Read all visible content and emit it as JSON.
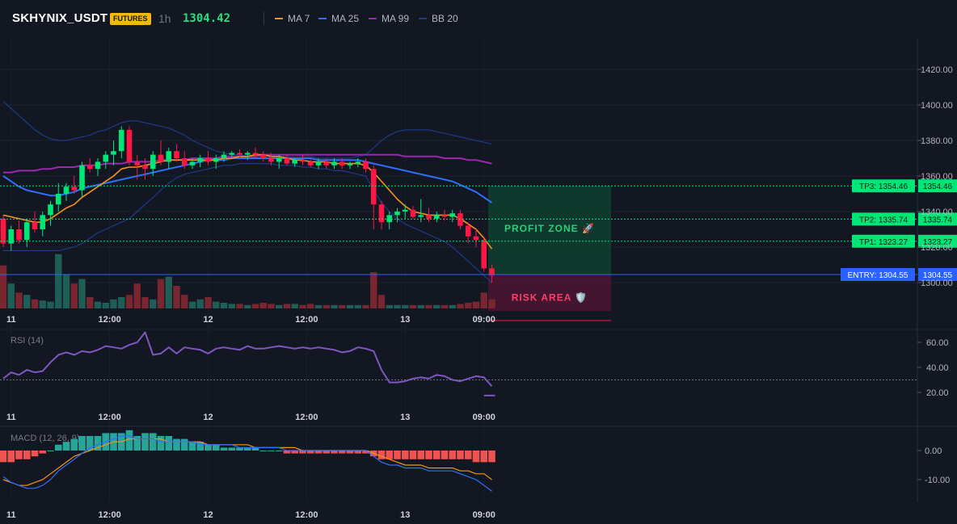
{
  "header": {
    "symbol": "SKHYNIX_USDT",
    "badge": "FUTURES",
    "timeframe": "1h",
    "last_price": "1304.42",
    "legend": [
      {
        "name": "MA 7",
        "color": "#f7931a",
        "icon": "line-swatch-icon"
      },
      {
        "name": "MA 25",
        "color": "#2f6fff",
        "icon": "line-swatch-icon"
      },
      {
        "name": "MA 99",
        "color": "#9c27b0",
        "icon": "line-swatch-icon"
      },
      {
        "name": "BB 20",
        "color": "#1e3a8a",
        "icon": "line-swatch-icon"
      }
    ]
  },
  "chart_data": [
    {
      "type": "candlestick",
      "title": "SKHYNIX_USDT",
      "ylim": [
        1292,
        1428
      ],
      "y_ticks": [
        "1420.00",
        "1400.00",
        "1380.00",
        "1360.00",
        "1340.00",
        "1320.00",
        "1300.00"
      ],
      "x_ticks": [
        "11",
        "12:00",
        "12",
        "12:00",
        "13",
        "09:00"
      ],
      "candles": [
        [
          1336,
          1338,
          1320,
          1322
        ],
        [
          1322,
          1332,
          1318,
          1330
        ],
        [
          1330,
          1335,
          1322,
          1324
        ],
        [
          1324,
          1336,
          1320,
          1334
        ],
        [
          1334,
          1340,
          1328,
          1330
        ],
        [
          1330,
          1340,
          1326,
          1338
        ],
        [
          1338,
          1346,
          1332,
          1344
        ],
        [
          1344,
          1356,
          1340,
          1350
        ],
        [
          1350,
          1356,
          1346,
          1354
        ],
        [
          1354,
          1360,
          1350,
          1352
        ],
        [
          1352,
          1368,
          1348,
          1366
        ],
        [
          1366,
          1370,
          1362,
          1364
        ],
        [
          1364,
          1370,
          1360,
          1368
        ],
        [
          1368,
          1374,
          1364,
          1372
        ],
        [
          1372,
          1380,
          1366,
          1374
        ],
        [
          1374,
          1388,
          1370,
          1386
        ],
        [
          1386,
          1388,
          1366,
          1368
        ],
        [
          1368,
          1372,
          1358,
          1366
        ],
        [
          1366,
          1370,
          1358,
          1364
        ],
        [
          1364,
          1374,
          1360,
          1372
        ],
        [
          1372,
          1380,
          1366,
          1368
        ],
        [
          1368,
          1376,
          1364,
          1374
        ],
        [
          1374,
          1378,
          1368,
          1370
        ],
        [
          1370,
          1374,
          1364,
          1366
        ],
        [
          1366,
          1370,
          1364,
          1368
        ],
        [
          1368,
          1372,
          1365,
          1370
        ],
        [
          1370,
          1374,
          1366,
          1368
        ],
        [
          1368,
          1372,
          1364,
          1370
        ],
        [
          1370,
          1374,
          1368,
          1372
        ],
        [
          1372,
          1374,
          1370,
          1373
        ],
        [
          1373,
          1375,
          1370,
          1372
        ],
        [
          1372,
          1374,
          1369,
          1373
        ],
        [
          1373,
          1376,
          1370,
          1372
        ],
        [
          1372,
          1374,
          1368,
          1370
        ],
        [
          1370,
          1373,
          1366,
          1368
        ],
        [
          1368,
          1372,
          1364,
          1370
        ],
        [
          1370,
          1372,
          1366,
          1367
        ],
        [
          1367,
          1370,
          1365,
          1369
        ],
        [
          1369,
          1372,
          1366,
          1368
        ],
        [
          1368,
          1370,
          1365,
          1366
        ],
        [
          1366,
          1370,
          1364,
          1368
        ],
        [
          1368,
          1370,
          1364,
          1366
        ],
        [
          1366,
          1370,
          1364,
          1368
        ],
        [
          1368,
          1370,
          1364,
          1366
        ],
        [
          1366,
          1368,
          1364,
          1367
        ],
        [
          1367,
          1370,
          1365,
          1368
        ],
        [
          1368,
          1370,
          1362,
          1364
        ],
        [
          1364,
          1366,
          1330,
          1344
        ],
        [
          1344,
          1346,
          1330,
          1334
        ],
        [
          1334,
          1340,
          1330,
          1338
        ],
        [
          1338,
          1342,
          1334,
          1340
        ],
        [
          1340,
          1344,
          1336,
          1341
        ],
        [
          1341,
          1343,
          1336,
          1337
        ],
        [
          1337,
          1347,
          1334,
          1338
        ],
        [
          1338,
          1342,
          1334,
          1336
        ],
        [
          1336,
          1340,
          1334,
          1338
        ],
        [
          1338,
          1341,
          1335,
          1337
        ],
        [
          1337,
          1341,
          1334,
          1339
        ],
        [
          1339,
          1341,
          1330,
          1332
        ],
        [
          1332,
          1334,
          1322,
          1326
        ],
        [
          1326,
          1330,
          1320,
          1324
        ],
        [
          1324,
          1326,
          1306,
          1308
        ],
        [
          1308,
          1310,
          1300,
          1304
        ]
      ],
      "ma7": [
        1338,
        1337,
        1336,
        1335,
        1334,
        1334,
        1336,
        1339,
        1342,
        1344,
        1348,
        1351,
        1354,
        1357,
        1360,
        1364,
        1365,
        1365,
        1366,
        1367,
        1368,
        1369,
        1369,
        1369,
        1369,
        1369,
        1369,
        1369,
        1370,
        1370,
        1371,
        1371,
        1372,
        1372,
        1371,
        1371,
        1370,
        1369,
        1369,
        1368,
        1368,
        1368,
        1367,
        1367,
        1367,
        1367,
        1366,
        1362,
        1357,
        1352,
        1347,
        1343,
        1340,
        1339,
        1338,
        1338,
        1338,
        1338,
        1336,
        1333,
        1330,
        1325,
        1319
      ],
      "ma25": [
        1360,
        1357,
        1354,
        1352,
        1351,
        1350,
        1349,
        1349,
        1350,
        1351,
        1353,
        1354,
        1355,
        1356,
        1357,
        1358,
        1359,
        1360,
        1361,
        1362,
        1363,
        1364,
        1365,
        1366,
        1367,
        1368,
        1369,
        1369,
        1369,
        1370,
        1370,
        1370,
        1370,
        1370,
        1370,
        1370,
        1370,
        1370,
        1370,
        1370,
        1369,
        1369,
        1369,
        1369,
        1369,
        1369,
        1368,
        1367,
        1366,
        1365,
        1364,
        1363,
        1362,
        1361,
        1360,
        1359,
        1358,
        1357,
        1355,
        1353,
        1351,
        1348,
        1345
      ],
      "ma99": [
        1362,
        1362,
        1363,
        1363,
        1363,
        1364,
        1364,
        1365,
        1365,
        1365,
        1366,
        1366,
        1366,
        1367,
        1367,
        1367,
        1368,
        1368,
        1368,
        1368,
        1369,
        1369,
        1369,
        1369,
        1370,
        1370,
        1370,
        1370,
        1371,
        1371,
        1371,
        1371,
        1371,
        1372,
        1372,
        1372,
        1372,
        1372,
        1372,
        1372,
        1372,
        1372,
        1372,
        1372,
        1372,
        1372,
        1372,
        1372,
        1372,
        1372,
        1372,
        1371,
        1371,
        1371,
        1371,
        1371,
        1370,
        1370,
        1370,
        1369,
        1369,
        1368,
        1367
      ],
      "bb_upper": [
        1402,
        1398,
        1394,
        1390,
        1386,
        1383,
        1381,
        1380,
        1380,
        1381,
        1382,
        1383,
        1385,
        1386,
        1388,
        1390,
        1391,
        1391,
        1390,
        1389,
        1388,
        1387,
        1385,
        1383,
        1380,
        1378,
        1376,
        1374,
        1373,
        1372,
        1372,
        1371,
        1371,
        1371,
        1371,
        1371,
        1371,
        1371,
        1371,
        1371,
        1370,
        1370,
        1370,
        1370,
        1370,
        1371,
        1372,
        1376,
        1380,
        1383,
        1385,
        1386,
        1386,
        1386,
        1386,
        1385,
        1384,
        1383,
        1382,
        1381,
        1380,
        1379,
        1378
      ],
      "bb_lower": [
        1318,
        1318,
        1318,
        1318,
        1318,
        1318,
        1318,
        1318,
        1319,
        1320,
        1322,
        1325,
        1328,
        1330,
        1332,
        1334,
        1336,
        1340,
        1344,
        1348,
        1352,
        1356,
        1359,
        1361,
        1362,
        1363,
        1364,
        1365,
        1366,
        1366,
        1367,
        1367,
        1367,
        1367,
        1367,
        1366,
        1366,
        1366,
        1365,
        1365,
        1364,
        1364,
        1363,
        1363,
        1362,
        1361,
        1360,
        1352,
        1345,
        1340,
        1336,
        1333,
        1331,
        1329,
        1327,
        1325,
        1323,
        1320,
        1316,
        1312,
        1308,
        1304,
        1300
      ]
    },
    {
      "type": "bar",
      "title": "Volume",
      "values": [
        38,
        22,
        14,
        12,
        8,
        7,
        6,
        48,
        30,
        22,
        26,
        10,
        6,
        5,
        8,
        10,
        12,
        22,
        10,
        8,
        26,
        28,
        20,
        12,
        6,
        8,
        10,
        6,
        5,
        4,
        4,
        3,
        4,
        5,
        4,
        3,
        4,
        4,
        3,
        4,
        3,
        3,
        3,
        3,
        3,
        3,
        3,
        32,
        12,
        3,
        3,
        3,
        3,
        3,
        3,
        3,
        3,
        3,
        4,
        5,
        6,
        14,
        8
      ]
    },
    {
      "type": "line",
      "title": "RSI (14)",
      "ylim": [
        10,
        70
      ],
      "y_ticks": [
        "60.00",
        "40.00",
        "20.00"
      ],
      "values": [
        31,
        36,
        34,
        38,
        36,
        37,
        44,
        50,
        52,
        50,
        53,
        52,
        54,
        57,
        56,
        55,
        58,
        60,
        68,
        50,
        51,
        56,
        51,
        56,
        55,
        54,
        51,
        55,
        56,
        55,
        54,
        57,
        55,
        55,
        56,
        57,
        56,
        55,
        56,
        55,
        56,
        55,
        54,
        52,
        53,
        56,
        55,
        53,
        38,
        28,
        28,
        29,
        31,
        32,
        31,
        34,
        33,
        30,
        29,
        31,
        33,
        32,
        25
      ]
    },
    {
      "type": "bar",
      "title": "MACD (12, 26, 9)",
      "ylim": [
        -16,
        8
      ],
      "y_ticks": [
        "0.00",
        "-10.00"
      ],
      "histogram": [
        -4,
        -4,
        -3,
        -3,
        -2,
        -1,
        0,
        2,
        3,
        4,
        5,
        5,
        5,
        6,
        6,
        6,
        7,
        5,
        6,
        6,
        5,
        5,
        4,
        4,
        3,
        3,
        2,
        2,
        1,
        1,
        1,
        1,
        1,
        0,
        0,
        0,
        -1,
        -1,
        -1,
        -1,
        -1,
        -1,
        -1,
        -1,
        -1,
        -1,
        -1,
        -2,
        -3,
        -3,
        -3,
        -3,
        -3,
        -3,
        -3,
        -3,
        -3,
        -3,
        -3,
        -3,
        -4,
        -4,
        -4
      ],
      "macd": [
        -9,
        -11,
        -12,
        -13,
        -13,
        -12,
        -10,
        -7,
        -5,
        -3,
        -1,
        1,
        2,
        3,
        4,
        5,
        5,
        4,
        4,
        4,
        3,
        3,
        3,
        3,
        3,
        2,
        2,
        2,
        2,
        2,
        1,
        1,
        1,
        1,
        1,
        1,
        0,
        0,
        0,
        0,
        0,
        0,
        0,
        0,
        0,
        0,
        0,
        -2,
        -4,
        -5,
        -5,
        -6,
        -6,
        -6,
        -7,
        -7,
        -7,
        -7,
        -8,
        -9,
        -10,
        -12,
        -14
      ],
      "signal": [
        -10,
        -11,
        -12,
        -12,
        -11,
        -10,
        -8,
        -6,
        -4,
        -2,
        -1,
        0,
        1,
        2,
        3,
        3,
        4,
        4,
        4,
        4,
        4,
        3,
        3,
        3,
        3,
        3,
        2,
        2,
        2,
        2,
        2,
        2,
        1,
        1,
        1,
        1,
        1,
        1,
        0,
        0,
        0,
        0,
        0,
        0,
        0,
        0,
        0,
        -1,
        -2,
        -3,
        -4,
        -5,
        -5,
        -5,
        -6,
        -6,
        -6,
        -6,
        -7,
        -7,
        -8,
        -8,
        -10
      ]
    }
  ],
  "levels": {
    "tp3": {
      "label": "TP3: 1354.46",
      "axis": "1354.46",
      "value": 1354.46
    },
    "tp2": {
      "label": "TP2: 1335.74",
      "axis": "1335.74",
      "value": 1335.74
    },
    "tp1": {
      "label": "TP1: 1323.27",
      "axis": "1323.27",
      "value": 1323.27
    },
    "entry": {
      "label": "ENTRY: 1304.55",
      "axis": "1304.55",
      "value": 1304.55
    },
    "stop": {
      "value": 1284
    }
  },
  "zones": {
    "profit": {
      "label": "PROFIT ZONE 🚀",
      "icon": "rocket-icon"
    },
    "risk": {
      "label": "RISK AREA 🛡️",
      "icon": "shield-icon"
    }
  },
  "colors": {
    "up": "#26a69a",
    "up_bright": "#00e676",
    "down": "#ff1744",
    "ma7": "#f7931a",
    "ma25": "#2f6fff",
    "ma99": "#9c27b0",
    "bb": "#1e3a8a",
    "rsi": "#7e57c2",
    "tp": "#00e676",
    "entry": "#2962ff"
  }
}
